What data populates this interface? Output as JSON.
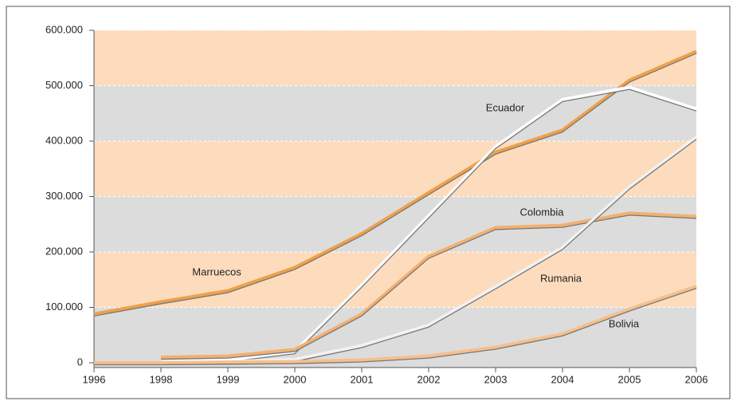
{
  "chart_data": {
    "type": "line",
    "categories": [
      "1996",
      "1998",
      "1999",
      "2000",
      "2001",
      "2002",
      "2003",
      "2004",
      "2005",
      "2006"
    ],
    "series": [
      {
        "name": "Marruecos",
        "color": "#f0a04b",
        "values": [
          88000,
          110000,
          130000,
          172000,
          233000,
          307000,
          380000,
          420000,
          510000,
          562000
        ]
      },
      {
        "name": "Ecuador",
        "color": "#ffffff",
        "values": [
          null,
          3000,
          5000,
          20000,
          140000,
          265000,
          390000,
          475000,
          497000,
          458000
        ]
      },
      {
        "name": "Colombia",
        "color": "#f3b070",
        "values": [
          null,
          10000,
          12000,
          24000,
          88000,
          192000,
          244000,
          248000,
          270000,
          264000
        ]
      },
      {
        "name": "Rumania",
        "color": "#f2f2f2",
        "values": [
          null,
          2000,
          2000,
          6000,
          31000,
          68000,
          137000,
          208000,
          317000,
          407000
        ]
      },
      {
        "name": "Bolivia",
        "color": "#f6bf8c",
        "values": [
          0,
          0,
          1000,
          2000,
          5000,
          12000,
          28000,
          52000,
          97000,
          138000
        ]
      }
    ],
    "ylim": [
      0,
      600000
    ],
    "yticks": [
      0,
      {
        "value": 100000,
        "label": "100.000"
      },
      {
        "value": 200000,
        "label": "200.000"
      },
      {
        "value": 300000,
        "label": "300.000"
      },
      {
        "value": 400000,
        "label": "400.000"
      },
      {
        "value": 500000,
        "label": "500.000"
      },
      {
        "value": 600000,
        "label": "600.000"
      }
    ],
    "grid": true
  }
}
